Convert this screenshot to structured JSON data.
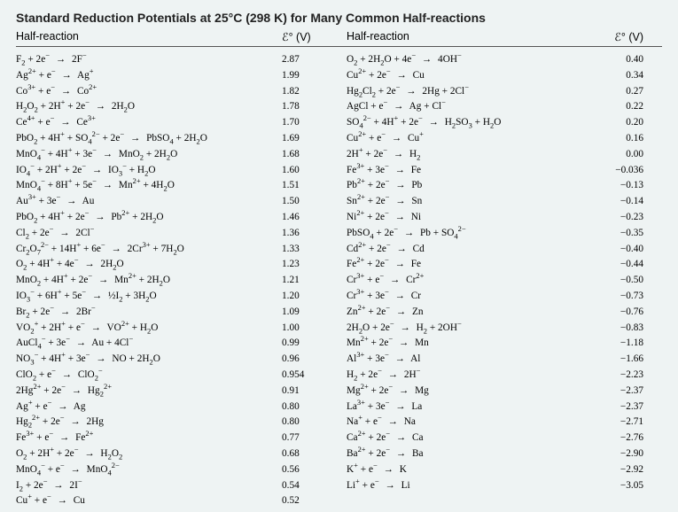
{
  "title": "Standard Reduction Potentials at 25°C (298 K) for Many Common Half-reactions",
  "header": {
    "reaction_label": "Half-reaction",
    "potential_label": "ℰ° (V)"
  },
  "left": [
    {
      "rx": "F₂ + 2e⁻  →  2F⁻",
      "v": "2.87"
    },
    {
      "rx": "Ag²⁺ + e⁻  →  Ag⁺",
      "v": "1.99"
    },
    {
      "rx": "Co³⁺ + e⁻  →  Co²⁺",
      "v": "1.82"
    },
    {
      "rx": "H₂O₂ + 2H⁺ + 2e⁻  →  2H₂O",
      "v": "1.78"
    },
    {
      "rx": "Ce⁴⁺ + e⁻  →  Ce³⁺",
      "v": "1.70"
    },
    {
      "rx": "PbO₂ + 4H⁺ + SO₄²⁻ + 2e⁻  →  PbSO₄ + 2H₂O",
      "v": "1.69"
    },
    {
      "rx": "MnO₄⁻ + 4H⁺ + 3e⁻  →  MnO₂ + 2H₂O",
      "v": "1.68"
    },
    {
      "rx": "IO₄⁻ + 2H⁺ + 2e⁻  →  IO₃⁻ + H₂O",
      "v": "1.60"
    },
    {
      "rx": "MnO₄⁻ + 8H⁺ + 5e⁻  →  Mn²⁺ + 4H₂O",
      "v": "1.51"
    },
    {
      "rx": "Au³⁺ + 3e⁻  →  Au",
      "v": "1.50"
    },
    {
      "rx": "PbO₂ + 4H⁺ + 2e⁻  →  Pb²⁺ + 2H₂O",
      "v": "1.46"
    },
    {
      "rx": "Cl₂ + 2e⁻  →  2Cl⁻",
      "v": "1.36"
    },
    {
      "rx": "Cr₂O₇²⁻ + 14H⁺ + 6e⁻  →  2Cr³⁺ + 7H₂O",
      "v": "1.33"
    },
    {
      "rx": "O₂ + 4H⁺ + 4e⁻  →  2H₂O",
      "v": "1.23"
    },
    {
      "rx": "MnO₂ + 4H⁺ + 2e⁻  →  Mn²⁺ + 2H₂O",
      "v": "1.21"
    },
    {
      "rx": "IO₃⁻ + 6H⁺ + 5e⁻  →  ½I₂ + 3H₂O",
      "v": "1.20"
    },
    {
      "rx": "Br₂ + 2e⁻  →  2Br⁻",
      "v": "1.09"
    },
    {
      "rx": "VO₂⁺ + 2H⁺ + e⁻  →  VO²⁺ + H₂O",
      "v": "1.00"
    },
    {
      "rx": "AuCl₄⁻ + 3e⁻  →  Au + 4Cl⁻",
      "v": "0.99"
    },
    {
      "rx": "NO₃⁻ + 4H⁺ + 3e⁻  →  NO + 2H₂O",
      "v": "0.96"
    },
    {
      "rx": "ClO₂ + e⁻  →  ClO₂⁻",
      "v": "0.954"
    },
    {
      "rx": "2Hg²⁺ + 2e⁻  →  Hg₂²⁺",
      "v": "0.91"
    },
    {
      "rx": "Ag⁺ + e⁻  →  Ag",
      "v": "0.80"
    },
    {
      "rx": "Hg₂²⁺ + 2e⁻  →  2Hg",
      "v": "0.80"
    },
    {
      "rx": "Fe³⁺ + e⁻  →  Fe²⁺",
      "v": "0.77"
    },
    {
      "rx": "O₂ + 2H⁺ + 2e⁻  →  H₂O₂",
      "v": "0.68"
    },
    {
      "rx": "MnO₄⁻ + e⁻  →  MnO₄²⁻",
      "v": "0.56"
    },
    {
      "rx": "I₂ + 2e⁻  →  2I⁻",
      "v": "0.54"
    },
    {
      "rx": "Cu⁺ + e⁻  →  Cu",
      "v": "0.52"
    }
  ],
  "right": [
    {
      "rx": "O₂ + 2H₂O + 4e⁻  →  4OH⁻",
      "v": "0.40"
    },
    {
      "rx": "Cu²⁺ + 2e⁻  →  Cu",
      "v": "0.34"
    },
    {
      "rx": "Hg₂Cl₂ + 2e⁻  →  2Hg + 2Cl⁻",
      "v": "0.27"
    },
    {
      "rx": "AgCl + e⁻  →  Ag + Cl⁻",
      "v": "0.22"
    },
    {
      "rx": "SO₄²⁻ + 4H⁺ + 2e⁻  →  H₂SO₃ + H₂O",
      "v": "0.20"
    },
    {
      "rx": "Cu²⁺ + e⁻  →  Cu⁺",
      "v": "0.16"
    },
    {
      "rx": "2H⁺ + 2e⁻  →  H₂",
      "v": "0.00"
    },
    {
      "rx": "Fe³⁺ + 3e⁻  →  Fe",
      "v": "−0.036"
    },
    {
      "rx": "Pb²⁺ + 2e⁻  →  Pb",
      "v": "−0.13"
    },
    {
      "rx": "Sn²⁺ + 2e⁻  →  Sn",
      "v": "−0.14"
    },
    {
      "rx": "Ni²⁺ + 2e⁻  →  Ni",
      "v": "−0.23"
    },
    {
      "rx": "PbSO₄ + 2e⁻  →  Pb + SO₄²⁻",
      "v": "−0.35"
    },
    {
      "rx": "Cd²⁺ + 2e⁻  →  Cd",
      "v": "−0.40"
    },
    {
      "rx": "Fe²⁺ + 2e⁻  →  Fe",
      "v": "−0.44"
    },
    {
      "rx": "Cr³⁺ + e⁻  →  Cr²⁺",
      "v": "−0.50"
    },
    {
      "rx": "Cr³⁺ + 3e⁻  →  Cr",
      "v": "−0.73"
    },
    {
      "rx": "Zn²⁺ + 2e⁻  →  Zn",
      "v": "−0.76"
    },
    {
      "rx": "2H₂O + 2e⁻  →  H₂ + 2OH⁻",
      "v": "−0.83"
    },
    {
      "rx": "Mn²⁺ + 2e⁻  →  Mn",
      "v": "−1.18"
    },
    {
      "rx": "Al³⁺ + 3e⁻  →  Al",
      "v": "−1.66"
    },
    {
      "rx": "H₂ + 2e⁻  →  2H⁻",
      "v": "−2.23"
    },
    {
      "rx": "Mg²⁺ + 2e⁻  →  Mg",
      "v": "−2.37"
    },
    {
      "rx": "La³⁺ + 3e⁻  →  La",
      "v": "−2.37"
    },
    {
      "rx": "Na⁺ + e⁻  →  Na",
      "v": "−2.71"
    },
    {
      "rx": "Ca²⁺ + 2e⁻  →  Ca",
      "v": "−2.76"
    },
    {
      "rx": "Ba²⁺ + 2e⁻  →  Ba",
      "v": "−2.90"
    },
    {
      "rx": "K⁺ + e⁻  →  K",
      "v": "−2.92"
    },
    {
      "rx": "Li⁺ + e⁻  →  Li",
      "v": "−3.05"
    }
  ],
  "style": {
    "background": "#eef3f3",
    "text_color": "#000000",
    "rule_color": "#555555",
    "title_fontsize": 14,
    "header_fontsize": 12.5,
    "row_fontsize": 11.3,
    "row_line_height": 17.8
  }
}
